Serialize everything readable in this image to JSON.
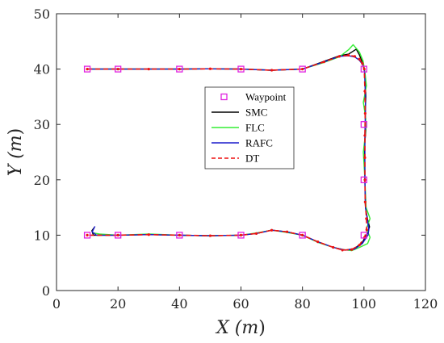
{
  "chart_data": {
    "type": "line",
    "xlabel_var": "X",
    "xlabel_unit": "m",
    "ylabel_var": "Y",
    "ylabel_unit": "m",
    "xlim": [
      0,
      120
    ],
    "ylim": [
      0,
      50
    ],
    "xticks": [
      0,
      20,
      40,
      60,
      80,
      100,
      120
    ],
    "yticks": [
      0,
      10,
      20,
      30,
      40,
      50
    ],
    "grid": false,
    "legend_position": "center",
    "waypoints": {
      "name": "Waypoint",
      "color": "#e020e0",
      "points": [
        [
          10,
          40
        ],
        [
          20,
          40
        ],
        [
          40,
          40
        ],
        [
          60,
          40
        ],
        [
          80,
          40
        ],
        [
          100,
          40
        ],
        [
          100,
          30
        ],
        [
          100,
          20
        ],
        [
          100,
          10
        ],
        [
          80,
          10
        ],
        [
          60,
          10
        ],
        [
          40,
          10
        ],
        [
          20,
          10
        ],
        [
          10,
          10
        ]
      ]
    },
    "series": [
      {
        "name": "SMC",
        "color": "#000000",
        "dash": "none",
        "points": [
          [
            10,
            40
          ],
          [
            20,
            40
          ],
          [
            30,
            40
          ],
          [
            40,
            40
          ],
          [
            50,
            40.05
          ],
          [
            60,
            40
          ],
          [
            70,
            39.8
          ],
          [
            80,
            40
          ],
          [
            87,
            41.4
          ],
          [
            92,
            42.4
          ],
          [
            95,
            42.7
          ],
          [
            97.5,
            43.6
          ],
          [
            98.5,
            42.6
          ],
          [
            99.5,
            41.2
          ],
          [
            100.2,
            40
          ],
          [
            100.4,
            38
          ],
          [
            100.6,
            35
          ],
          [
            100.4,
            32
          ],
          [
            100.6,
            29
          ],
          [
            100.2,
            26
          ],
          [
            100.3,
            20
          ],
          [
            100.5,
            15
          ],
          [
            101.2,
            12.8
          ],
          [
            101.8,
            11.5
          ],
          [
            101.3,
            10.6
          ],
          [
            99.5,
            8.7
          ],
          [
            97,
            7.6
          ],
          [
            94,
            7.3
          ],
          [
            90,
            7.8
          ],
          [
            85,
            8.8
          ],
          [
            80,
            10
          ],
          [
            75,
            10.6
          ],
          [
            70,
            10.9
          ],
          [
            65,
            10.3
          ],
          [
            60,
            10
          ],
          [
            50,
            9.9
          ],
          [
            40,
            10
          ],
          [
            30,
            10.1
          ],
          [
            20,
            10
          ],
          [
            12,
            10
          ],
          [
            11.5,
            10.8
          ],
          [
            12.3,
            11.4
          ]
        ]
      },
      {
        "name": "FLC",
        "color": "#33ee33",
        "dash": "none",
        "points": [
          [
            10,
            40
          ],
          [
            20,
            40
          ],
          [
            30,
            40
          ],
          [
            40,
            40
          ],
          [
            50,
            40.05
          ],
          [
            60,
            40
          ],
          [
            70,
            39.8
          ],
          [
            80,
            40
          ],
          [
            87,
            41.2
          ],
          [
            92,
            42.2
          ],
          [
            95,
            43.5
          ],
          [
            96.5,
            44.4
          ],
          [
            98.5,
            43.1
          ],
          [
            99.7,
            41.5
          ],
          [
            100.3,
            39.5
          ],
          [
            100.8,
            37
          ],
          [
            99.8,
            34
          ],
          [
            100.6,
            31
          ],
          [
            100.4,
            28
          ],
          [
            99.8,
            25
          ],
          [
            100.3,
            20
          ],
          [
            100.7,
            15
          ],
          [
            102,
            13
          ],
          [
            100.8,
            11.2
          ],
          [
            102,
            9.6
          ],
          [
            101.2,
            8.5
          ],
          [
            98.6,
            7.8
          ],
          [
            96,
            7.2
          ],
          [
            93,
            7.4
          ],
          [
            90,
            7.8
          ],
          [
            85,
            8.7
          ],
          [
            80,
            10
          ],
          [
            75,
            10.5
          ],
          [
            70,
            10.9
          ],
          [
            65,
            10.4
          ],
          [
            60,
            10
          ],
          [
            50,
            9.9
          ],
          [
            40,
            10
          ],
          [
            30,
            10.2
          ],
          [
            20,
            10
          ],
          [
            14,
            10.2
          ],
          [
            12,
            10.4
          ]
        ]
      },
      {
        "name": "RAFC",
        "color": "#1a1acc",
        "dash": "none",
        "points": [
          [
            10,
            40
          ],
          [
            20,
            40
          ],
          [
            30,
            40
          ],
          [
            40,
            40
          ],
          [
            50,
            40.05
          ],
          [
            60,
            40
          ],
          [
            70,
            39.8
          ],
          [
            80,
            40
          ],
          [
            87,
            41.3
          ],
          [
            92,
            42.3
          ],
          [
            95,
            42.4
          ],
          [
            97,
            42.2
          ],
          [
            98.5,
            41.6
          ],
          [
            99.6,
            40.8
          ],
          [
            100.2,
            39.5
          ],
          [
            100.4,
            36
          ],
          [
            100.5,
            33
          ],
          [
            100.3,
            28
          ],
          [
            100.3,
            24
          ],
          [
            100.3,
            20
          ],
          [
            100.5,
            15
          ],
          [
            101.2,
            12.5
          ],
          [
            101.6,
            11
          ],
          [
            101.3,
            10
          ],
          [
            99.5,
            8.5
          ],
          [
            97,
            7.5
          ],
          [
            94,
            7.3
          ],
          [
            90,
            7.8
          ],
          [
            85,
            8.8
          ],
          [
            80,
            10
          ],
          [
            75,
            10.6
          ],
          [
            70,
            10.9
          ],
          [
            65,
            10.3
          ],
          [
            60,
            10
          ],
          [
            50,
            9.9
          ],
          [
            40,
            10
          ],
          [
            30,
            10.1
          ],
          [
            20,
            10
          ],
          [
            13,
            10
          ],
          [
            11.6,
            10.6
          ],
          [
            12.5,
            11.6
          ]
        ]
      },
      {
        "name": "DT",
        "color": "#ee1111",
        "dash": "6,4",
        "points": [
          [
            10,
            40
          ],
          [
            20,
            40
          ],
          [
            30,
            40
          ],
          [
            40,
            40
          ],
          [
            50,
            40.05
          ],
          [
            60,
            40
          ],
          [
            70,
            39.8
          ],
          [
            80,
            40
          ],
          [
            87,
            41.3
          ],
          [
            92,
            42.3
          ],
          [
            95,
            42.5
          ],
          [
            97,
            42.3
          ],
          [
            98.5,
            41.8
          ],
          [
            99.5,
            41
          ],
          [
            100.1,
            40
          ],
          [
            100.3,
            36
          ],
          [
            100.4,
            32
          ],
          [
            100.3,
            28
          ],
          [
            100.3,
            24
          ],
          [
            100.3,
            20
          ],
          [
            100.4,
            16
          ],
          [
            100.8,
            13
          ],
          [
            100.9,
            11
          ],
          [
            100.2,
            9.6
          ],
          [
            98.5,
            8.2
          ],
          [
            96,
            7.4
          ],
          [
            93,
            7.3
          ],
          [
            90,
            7.8
          ],
          [
            85,
            8.8
          ],
          [
            80,
            10
          ],
          [
            75,
            10.6
          ],
          [
            70,
            10.9
          ],
          [
            65,
            10.3
          ],
          [
            60,
            10
          ],
          [
            50,
            9.9
          ],
          [
            40,
            10
          ],
          [
            30,
            10.1
          ],
          [
            20,
            10
          ],
          [
            10,
            10
          ]
        ]
      }
    ]
  }
}
